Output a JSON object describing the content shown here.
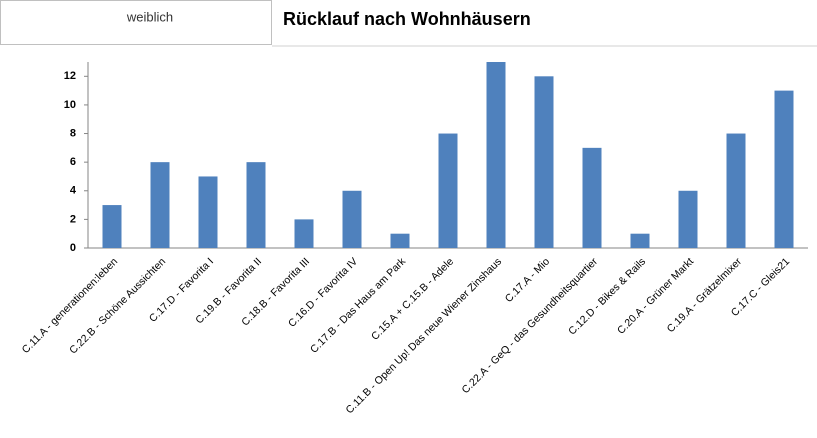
{
  "filter_label": "weiblich",
  "chart_data": {
    "type": "bar",
    "title": "Rücklauf nach Wohnhäusern",
    "categories": [
      "C.11.A - generationen:leben",
      "C.22.B - Schöne Aussichten",
      "C.17.D - Favorita I",
      "C.19.B - Favorita II",
      "C.18.B - Favorita III",
      "C.16.D - Favorita IV",
      "C.17.B - Das Haus am Park",
      "C.15.A + C.15.B - Adele",
      "C.11.B - Open Up! Das neue Wiener Zinshaus",
      "C.17.A - Mio",
      "C.22.A - GeQ - das Gesundheitsquartier",
      "C.12.D - Bikes & Rails",
      "C.20.A - Grüner Markt",
      "C.19.A - Grätzelmixer",
      "C.17.C - Gleis21"
    ],
    "values": [
      3,
      6,
      5,
      6,
      2,
      4,
      1,
      8,
      13,
      12,
      7,
      1,
      4,
      8,
      11
    ],
    "color": "#4f81bd",
    "ylim": [
      0,
      13
    ],
    "yticks": [
      0,
      2,
      4,
      6,
      8,
      10,
      12
    ],
    "grid": false
  }
}
